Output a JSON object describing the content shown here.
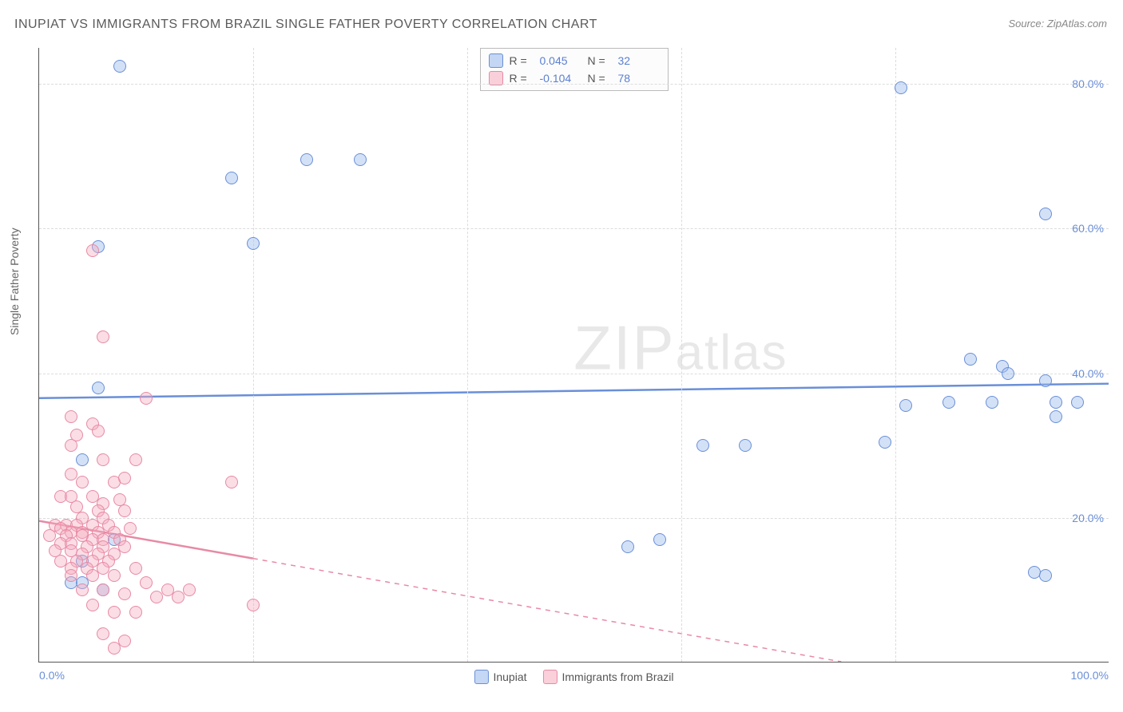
{
  "title": "INUPIAT VS IMMIGRANTS FROM BRAZIL SINGLE FATHER POVERTY CORRELATION CHART",
  "source": "Source: ZipAtlas.com",
  "ylabel": "Single Father Poverty",
  "watermark": {
    "part1": "ZIP",
    "part2": "atlas"
  },
  "chart": {
    "type": "scatter",
    "xlim": [
      0,
      100
    ],
    "ylim": [
      0,
      85
    ],
    "background_color": "#ffffff",
    "grid_color": "#dcdcdc",
    "axis_color": "#555555",
    "y_gridlines": [
      20,
      40,
      60,
      80
    ],
    "y_tick_labels": [
      "20.0%",
      "40.0%",
      "60.0%",
      "80.0%"
    ],
    "x_gridlines": [
      20,
      40,
      60,
      80
    ],
    "x_tick_labels": {
      "min": "0.0%",
      "max": "100.0%"
    },
    "tick_fontsize": 14,
    "tick_color": "#6a8fd8",
    "label_fontsize": 14,
    "label_color": "#666666",
    "title_fontsize": 16,
    "title_color": "#5a5a5a",
    "point_radius": 8
  },
  "legend_top": {
    "border_color": "#bbbbbb",
    "rows": [
      {
        "swatch": "blue",
        "r_label": "R =",
        "r_value": "0.045",
        "n_label": "N =",
        "n_value": "32"
      },
      {
        "swatch": "pink",
        "r_label": "R =",
        "r_value": "-0.104",
        "n_label": "N =",
        "n_value": "78"
      }
    ]
  },
  "legend_bottom": {
    "items": [
      {
        "swatch": "blue",
        "label": "Inupiat"
      },
      {
        "swatch": "pink",
        "label": "Immigrants from Brazil"
      }
    ]
  },
  "series": [
    {
      "name": "Inupiat",
      "class": "blue",
      "fill_color": "rgba(157,189,237,0.45)",
      "stroke_color": "#6a8fd8",
      "trend": {
        "x1": 0,
        "y1": 36.5,
        "x2": 100,
        "y2": 38.5,
        "solid_until_x": 100,
        "line_width": 2.5
      },
      "points": [
        [
          7.5,
          82.5
        ],
        [
          80.5,
          79.5
        ],
        [
          18,
          67
        ],
        [
          25,
          69.5
        ],
        [
          30,
          69.5
        ],
        [
          94,
          62
        ],
        [
          5.5,
          57.5
        ],
        [
          20,
          58
        ],
        [
          87,
          42
        ],
        [
          90,
          41
        ],
        [
          90.5,
          40
        ],
        [
          94,
          39
        ],
        [
          5.5,
          38
        ],
        [
          81,
          35.5
        ],
        [
          85,
          36
        ],
        [
          89,
          36
        ],
        [
          95,
          36
        ],
        [
          97,
          36
        ],
        [
          95,
          34
        ],
        [
          79,
          30.5
        ],
        [
          62,
          30
        ],
        [
          66,
          30
        ],
        [
          4,
          28
        ],
        [
          7,
          17
        ],
        [
          55,
          16
        ],
        [
          58,
          17
        ],
        [
          4,
          14
        ],
        [
          3,
          11
        ],
        [
          4,
          11
        ],
        [
          6,
          10
        ],
        [
          93,
          12.5
        ],
        [
          94,
          12
        ]
      ]
    },
    {
      "name": "Immigrants from Brazil",
      "class": "pink",
      "fill_color": "rgba(245,170,190,0.4)",
      "stroke_color": "#e78aa5",
      "trend": {
        "x1": 0,
        "y1": 19.5,
        "x2": 75,
        "y2": 0,
        "solid_until_x": 20,
        "line_width": 2.5
      },
      "points": [
        [
          5,
          57
        ],
        [
          6,
          45
        ],
        [
          10,
          36.5
        ],
        [
          3,
          34
        ],
        [
          5,
          33
        ],
        [
          3.5,
          31.5
        ],
        [
          5.5,
          32
        ],
        [
          3,
          30
        ],
        [
          6,
          28
        ],
        [
          9,
          28
        ],
        [
          3,
          26
        ],
        [
          4,
          25
        ],
        [
          7,
          25
        ],
        [
          8,
          25.5
        ],
        [
          18,
          25
        ],
        [
          2,
          23
        ],
        [
          3,
          23
        ],
        [
          5,
          23
        ],
        [
          6,
          22
        ],
        [
          7.5,
          22.5
        ],
        [
          3.5,
          21.5
        ],
        [
          5.5,
          21
        ],
        [
          8,
          21
        ],
        [
          4,
          20
        ],
        [
          6,
          20
        ],
        [
          1.5,
          19
        ],
        [
          2.5,
          19
        ],
        [
          3.5,
          19
        ],
        [
          5,
          19
        ],
        [
          6.5,
          19
        ],
        [
          2,
          18.5
        ],
        [
          3,
          18
        ],
        [
          4,
          18
        ],
        [
          5.5,
          18
        ],
        [
          7,
          18
        ],
        [
          8.5,
          18.5
        ],
        [
          1,
          17.5
        ],
        [
          2.5,
          17.5
        ],
        [
          4,
          17.5
        ],
        [
          5,
          17
        ],
        [
          6,
          17
        ],
        [
          7.5,
          17
        ],
        [
          2,
          16.5
        ],
        [
          3,
          16.5
        ],
        [
          4.5,
          16
        ],
        [
          6,
          16
        ],
        [
          8,
          16
        ],
        [
          1.5,
          15.5
        ],
        [
          3,
          15.5
        ],
        [
          4,
          15
        ],
        [
          5.5,
          15
        ],
        [
          7,
          15
        ],
        [
          2,
          14
        ],
        [
          3.5,
          14
        ],
        [
          5,
          14
        ],
        [
          6.5,
          14
        ],
        [
          3,
          13
        ],
        [
          4.5,
          13
        ],
        [
          6,
          13
        ],
        [
          9,
          13
        ],
        [
          3,
          12
        ],
        [
          5,
          12
        ],
        [
          7,
          12
        ],
        [
          10,
          11
        ],
        [
          12,
          10
        ],
        [
          14,
          10
        ],
        [
          4,
          10
        ],
        [
          6,
          10
        ],
        [
          8,
          9.5
        ],
        [
          11,
          9
        ],
        [
          13,
          9
        ],
        [
          20,
          8
        ],
        [
          5,
          8
        ],
        [
          7,
          7
        ],
        [
          9,
          7
        ],
        [
          6,
          4
        ],
        [
          8,
          3
        ],
        [
          7,
          2
        ]
      ]
    }
  ]
}
